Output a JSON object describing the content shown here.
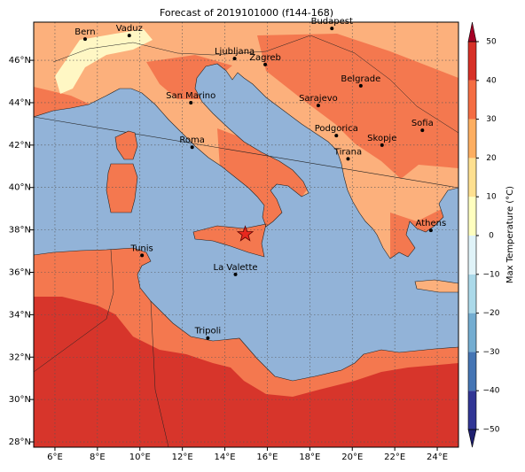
{
  "title": "Forecast of 2019101000 (f144-168)",
  "map": {
    "xlim": [
      5,
      25
    ],
    "ylim": [
      27.75,
      47.8
    ],
    "xticks": [
      {
        "value": 6,
        "label": "6°E"
      },
      {
        "value": 8,
        "label": "8°E"
      },
      {
        "value": 10,
        "label": "10°E"
      },
      {
        "value": 12,
        "label": "12°E"
      },
      {
        "value": 14,
        "label": "14°E"
      },
      {
        "value": 16,
        "label": "16°E"
      },
      {
        "value": 18,
        "label": "18°E"
      },
      {
        "value": 20,
        "label": "20°E"
      },
      {
        "value": 22,
        "label": "22°E"
      },
      {
        "value": 24,
        "label": "24°E"
      }
    ],
    "yticks": [
      {
        "value": 28,
        "label": "28°N"
      },
      {
        "value": 30,
        "label": "30°N"
      },
      {
        "value": 32,
        "label": "32°N"
      },
      {
        "value": 34,
        "label": "34°N"
      },
      {
        "value": 36,
        "label": "36°N"
      },
      {
        "value": 38,
        "label": "38°N"
      },
      {
        "value": 40,
        "label": "40°N"
      },
      {
        "value": 42,
        "label": "42°N"
      },
      {
        "value": 44,
        "label": "44°N"
      },
      {
        "value": 46,
        "label": "46°N"
      }
    ],
    "grid": true,
    "cities": [
      {
        "name": "Bern",
        "lon": 7.42,
        "lat": 47.0
      },
      {
        "name": "Vaduz",
        "lon": 9.5,
        "lat": 47.17
      },
      {
        "name": "Budapest",
        "lon": 19.04,
        "lat": 47.5
      },
      {
        "name": "Ljubljana",
        "lon": 14.46,
        "lat": 46.08
      },
      {
        "name": "Zagreb",
        "lon": 15.9,
        "lat": 45.8
      },
      {
        "name": "San Marino",
        "lon": 12.4,
        "lat": 44.0
      },
      {
        "name": "Belgrade",
        "lon": 20.4,
        "lat": 44.8
      },
      {
        "name": "Sarajevo",
        "lon": 18.4,
        "lat": 43.87
      },
      {
        "name": "Sofia",
        "lon": 23.3,
        "lat": 42.7
      },
      {
        "name": "Podgorica",
        "lon": 19.25,
        "lat": 42.45
      },
      {
        "name": "Skopje",
        "lon": 21.4,
        "lat": 42.0
      },
      {
        "name": "Roma",
        "lon": 12.46,
        "lat": 41.9
      },
      {
        "name": "Tirana",
        "lon": 19.8,
        "lat": 41.35
      },
      {
        "name": "Athens",
        "lon": 23.7,
        "lat": 37.98
      },
      {
        "name": "Tunis",
        "lon": 10.1,
        "lat": 36.8
      },
      {
        "name": "La Valette",
        "lon": 14.5,
        "lat": 35.9
      },
      {
        "name": "Tripoli",
        "lon": 13.2,
        "lat": 32.9
      }
    ],
    "marker": {
      "lon": 14.96,
      "lat": 37.8,
      "color": "#e8281e"
    }
  },
  "colorbar": {
    "label": "Max Temperature (°C)",
    "clim": [
      -50,
      50
    ],
    "ticks": [
      {
        "value": -50,
        "label": "−50"
      },
      {
        "value": -40,
        "label": "−40"
      },
      {
        "value": -30,
        "label": "−30"
      },
      {
        "value": -20,
        "label": "−20"
      },
      {
        "value": -10,
        "label": "−10"
      },
      0,
      10,
      20,
      30,
      40,
      50
    ],
    "colors": [
      "#313695",
      "#4575b4",
      "#74add1",
      "#abd9e9",
      "#e0f3f8",
      "#ffffbf",
      "#fee090",
      "#fdae61",
      "#f46d43",
      "#d73027"
    ],
    "over_color": "#a50026",
    "under_color": "#1f2070"
  }
}
